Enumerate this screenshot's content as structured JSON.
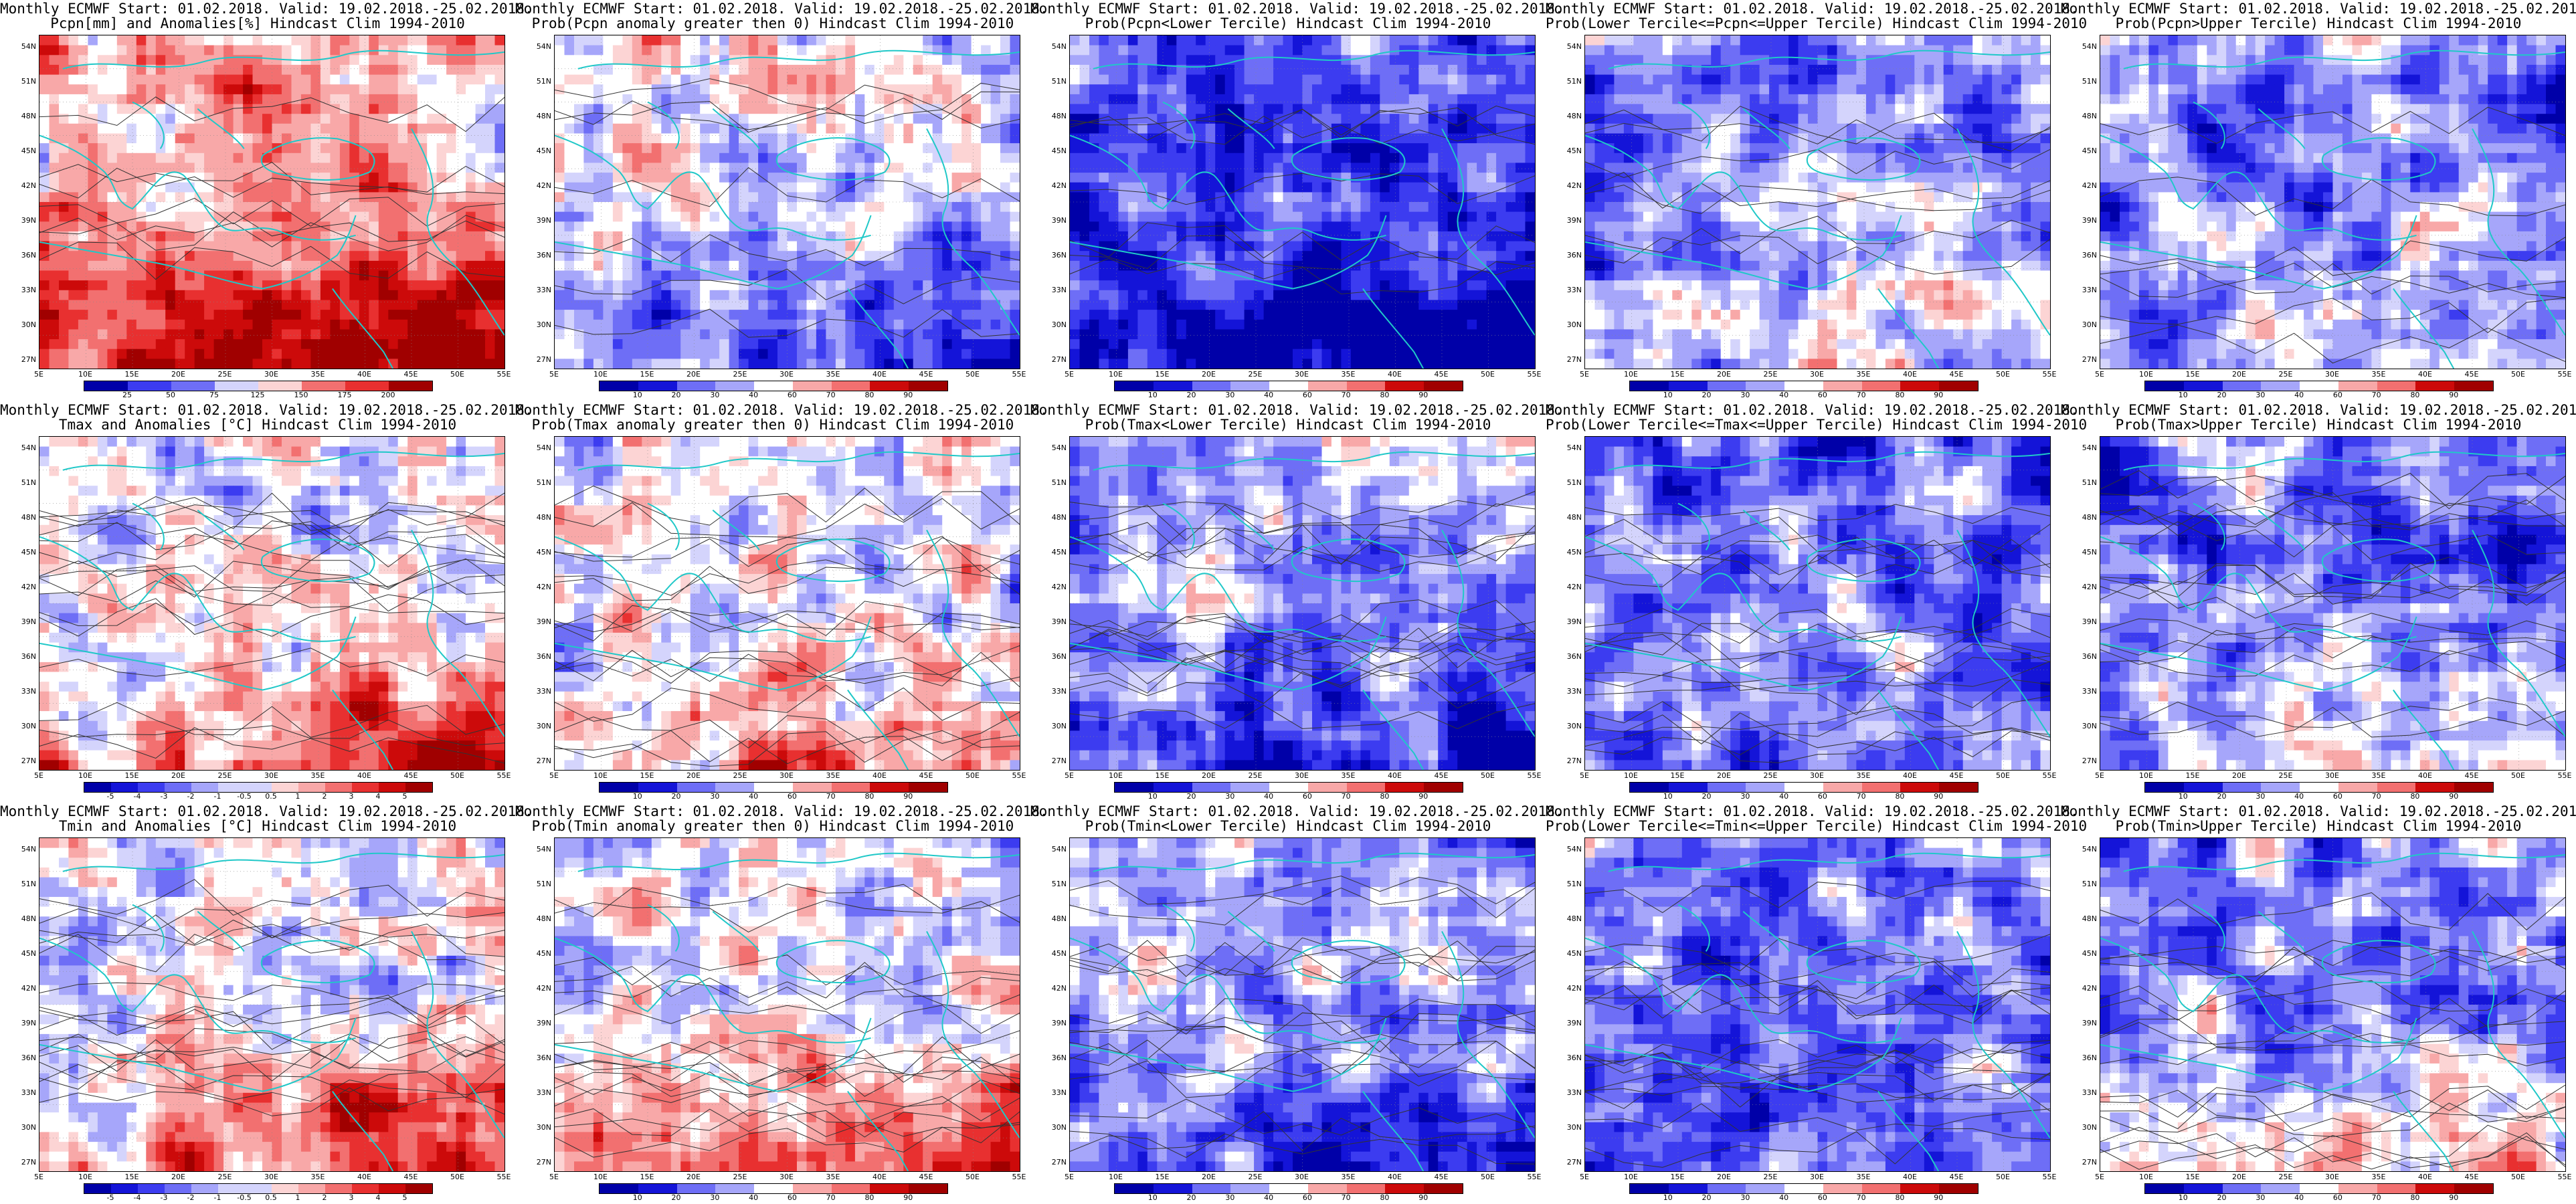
{
  "header_line": "Monthly ECMWF Start: 01.02.2018. Valid: 19.02.2018.-25.02.2018.",
  "lat_labels": [
    "54N",
    "51N",
    "48N",
    "45N",
    "42N",
    "39N",
    "36N",
    "33N",
    "30N",
    "27N"
  ],
  "lon_labels": [
    "5E",
    "10E",
    "15E",
    "20E",
    "25E",
    "30E",
    "35E",
    "40E",
    "45E",
    "50E",
    "55E"
  ],
  "colors": {
    "blue_scale": [
      "#0000a8",
      "#1414d8",
      "#3c3cf0",
      "#6e6ef6",
      "#a6a6fa",
      "#d4d4fc",
      "#ffffff"
    ],
    "red_scale": [
      "#ffffff",
      "#fcd4d4",
      "#f8a8a8",
      "#f27070",
      "#e83030",
      "#cc0a0a",
      "#a00000"
    ],
    "coast": "#20c8c8",
    "contour": "#333333"
  },
  "panels": [
    {
      "title2": "Pcpn[mm] and Anomalies[%] Hindcast Clim 1994-2010",
      "cbar": "anom_pcpn",
      "ticks": [
        "25",
        "50",
        "75",
        "125",
        "150",
        "175",
        "200"
      ],
      "field": {
        "bias": 0.2,
        "south": 0.75,
        "seed": 11
      }
    },
    {
      "title2": "Prob(Pcpn anomaly greater then 0) Hindcast Clim 1994-2010",
      "cbar": "prob",
      "ticks": [
        "10",
        "20",
        "30",
        "40",
        "60",
        "70",
        "80",
        "90"
      ],
      "field": {
        "bias": -0.05,
        "south": -0.6,
        "seed": 12
      }
    },
    {
      "title2": "Prob(Pcpn<Lower Tercile) Hindcast Clim 1994-2010",
      "cbar": "prob",
      "ticks": [
        "10",
        "20",
        "30",
        "40",
        "60",
        "70",
        "80",
        "90"
      ],
      "field": {
        "bias": -0.55,
        "south": -0.5,
        "seed": 13
      }
    },
    {
      "title2": "Prob(Lower Tercile<=Pcpn<=Upper Tercile) Hindcast Clim 1994-2010",
      "cbar": "prob",
      "ticks": [
        "10",
        "20",
        "30",
        "40",
        "60",
        "70",
        "80",
        "90"
      ],
      "field": {
        "bias": -0.35,
        "south": 0.35,
        "seed": 14
      }
    },
    {
      "title2": "Prob(Pcpn>Upper Tercile) Hindcast Clim 1994-2010",
      "cbar": "prob",
      "ticks": [
        "10",
        "20",
        "30",
        "40",
        "60",
        "70",
        "80",
        "90"
      ],
      "field": {
        "bias": -0.3,
        "south": 0.1,
        "seed": 15
      }
    },
    {
      "title2": "Tmax and Anomalies [°C] Hindcast Clim 1994-2010",
      "cbar": "anom_t",
      "ticks": [
        "-5",
        "-4",
        "-3",
        "-2",
        "-1",
        "-0.5",
        "0.5",
        "1",
        "2",
        "3",
        "4",
        "5"
      ],
      "field": {
        "bias": -0.05,
        "south": 0.55,
        "seed": 21
      }
    },
    {
      "title2": "Prob(Tmax anomaly greater then 0) Hindcast Clim 1994-2010",
      "cbar": "prob",
      "ticks": [
        "10",
        "20",
        "30",
        "40",
        "60",
        "70",
        "80",
        "90"
      ],
      "field": {
        "bias": -0.05,
        "south": 0.5,
        "seed": 22
      }
    },
    {
      "title2": "Prob(Tmax<Lower Tercile) Hindcast Clim 1994-2010",
      "cbar": "prob",
      "ticks": [
        "10",
        "20",
        "30",
        "40",
        "60",
        "70",
        "80",
        "90"
      ],
      "field": {
        "bias": -0.25,
        "south": -0.45,
        "seed": 23
      }
    },
    {
      "title2": "Prob(Lower Tercile<=Tmax<=Upper Tercile) Hindcast Clim 1994-2010",
      "cbar": "prob",
      "ticks": [
        "10",
        "20",
        "30",
        "40",
        "60",
        "70",
        "80",
        "90"
      ],
      "field": {
        "bias": -0.4,
        "south": 0.0,
        "seed": 24
      }
    },
    {
      "title2": "Prob(Tmax>Upper Tercile) Hindcast Clim 1994-2010",
      "cbar": "prob",
      "ticks": [
        "10",
        "20",
        "30",
        "40",
        "60",
        "70",
        "80",
        "90"
      ],
      "field": {
        "bias": -0.45,
        "south": 0.45,
        "seed": 25
      }
    },
    {
      "title2": "Tmin and Anomalies [°C] Hindcast Clim 1994-2010",
      "cbar": "anom_t",
      "ticks": [
        "-5",
        "-4",
        "-3",
        "-2",
        "-1",
        "-0.5",
        "0.5",
        "1",
        "2",
        "3",
        "4",
        "5"
      ],
      "field": {
        "bias": -0.05,
        "south": 0.6,
        "seed": 31
      }
    },
    {
      "title2": "Prob(Tmin anomaly greater then 0) Hindcast Clim 1994-2010",
      "cbar": "prob",
      "ticks": [
        "10",
        "20",
        "30",
        "40",
        "60",
        "70",
        "80",
        "90"
      ],
      "field": {
        "bias": -0.05,
        "south": 0.6,
        "seed": 32
      }
    },
    {
      "title2": "Prob(Tmin<Lower Tercile) Hindcast Clim 1994-2010",
      "cbar": "prob",
      "ticks": [
        "10",
        "20",
        "30",
        "40",
        "60",
        "70",
        "80",
        "90"
      ],
      "field": {
        "bias": -0.2,
        "south": -0.5,
        "seed": 33
      }
    },
    {
      "title2": "Prob(Lower Tercile<=Tmin<=Upper Tercile) Hindcast Clim 1994-2010",
      "cbar": "prob",
      "ticks": [
        "10",
        "20",
        "30",
        "40",
        "60",
        "70",
        "80",
        "90"
      ],
      "field": {
        "bias": -0.45,
        "south": 0.0,
        "seed": 34
      }
    },
    {
      "title2": "Prob(Tmin>Upper Tercile) Hindcast Clim 1994-2010",
      "cbar": "prob",
      "ticks": [
        "10",
        "20",
        "30",
        "40",
        "60",
        "70",
        "80",
        "90"
      ],
      "field": {
        "bias": -0.4,
        "south": 0.5,
        "seed": 35
      }
    }
  ],
  "chart_data": {
    "type": "heatmap",
    "rows": 3,
    "cols": 5,
    "xlim": [
      5,
      55
    ],
    "ylim": [
      25,
      55
    ],
    "xticks": [
      "5E",
      "10E",
      "15E",
      "20E",
      "25E",
      "30E",
      "35E",
      "40E",
      "45E",
      "50E",
      "55E"
    ],
    "yticks": [
      "54N",
      "51N",
      "48N",
      "45N",
      "42N",
      "39N",
      "36N",
      "33N",
      "30N",
      "27N"
    ],
    "colorbar_prob": [
      "10",
      "20",
      "30",
      "40",
      "60",
      "70",
      "80",
      "90"
    ],
    "colorbar_pcpn_anom": [
      "25",
      "50",
      "75",
      "125",
      "150",
      "175",
      "200"
    ],
    "colorbar_temp_anom": [
      "-5",
      "-4",
      "-3",
      "-2",
      "-1",
      "-0.5",
      "0.5",
      "1",
      "2",
      "3",
      "4",
      "5"
    ]
  }
}
